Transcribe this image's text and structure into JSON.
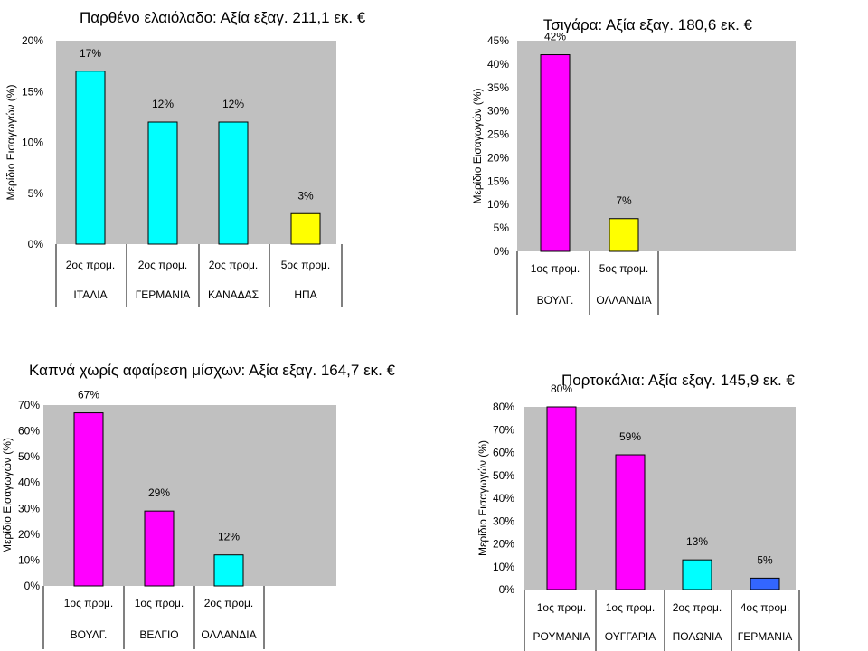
{
  "chart_data": [
    {
      "type": "bar",
      "title": "Παρθένο ελαιόλαδο: Αξία εξαγ. 211,1 εκ. €",
      "ylabel": "Μερίδιο Εισαγωγών (%)",
      "ylim": [
        0,
        20
      ],
      "yticks": [
        "0%",
        "5%",
        "10%",
        "15%",
        "20%"
      ],
      "ytick_values": [
        0,
        5,
        10,
        15,
        20
      ],
      "categories": [
        "ΙΤΑΛΙΑ",
        "ΓΕΡΜΑΝΙΑ",
        "ΚΑΝΑΔΑΣ",
        "ΗΠΑ"
      ],
      "ranks": [
        "2ος προμ.",
        "2ος προμ.",
        "2ος προμ.",
        "5ος προμ."
      ],
      "values": [
        17,
        12,
        12,
        3
      ],
      "value_labels": [
        "17%",
        "12%",
        "12%",
        "3%"
      ],
      "colors": [
        "#00FFFF",
        "#00FFFF",
        "#00FFFF",
        "#FFFF00"
      ],
      "grid": false
    },
    {
      "type": "bar",
      "title": "Τσιγάρα: Αξία εξαγ. 180,6 εκ. €",
      "ylabel": "Μερίδιο Εισαγωγών (%)",
      "ylim": [
        0,
        45
      ],
      "yticks": [
        "0%",
        "5%",
        "10%",
        "15%",
        "20%",
        "25%",
        "30%",
        "35%",
        "40%",
        "45%"
      ],
      "ytick_values": [
        0,
        5,
        10,
        15,
        20,
        25,
        30,
        35,
        40,
        45
      ],
      "categories": [
        "ΒΟΥΛΓ.",
        "ΟΛΛΑΝΔΙΑ"
      ],
      "ranks": [
        "1ος προμ.",
        "5ος προμ."
      ],
      "values": [
        42,
        7
      ],
      "value_labels": [
        "42%",
        "7%"
      ],
      "colors": [
        "#FF00FF",
        "#FFFF00"
      ],
      "grid": false
    },
    {
      "type": "bar",
      "title": "Καπνά χωρίς αφαίρεση μίσχων: Αξία εξαγ. 164,7 εκ. €",
      "ylabel": "Μερίδιο Εισαγωγών (%)",
      "ylim": [
        0,
        70
      ],
      "yticks": [
        "0%",
        "10%",
        "20%",
        "30%",
        "40%",
        "50%",
        "60%",
        "70%"
      ],
      "ytick_values": [
        0,
        10,
        20,
        30,
        40,
        50,
        60,
        70
      ],
      "categories": [
        "ΒΟΥΛΓ.",
        "ΒΕΛΓΙΟ",
        "ΟΛΛΑΝΔΙΑ"
      ],
      "ranks": [
        "1ος προμ.",
        "1ος προμ.",
        "2ος προμ."
      ],
      "values": [
        67,
        29,
        12
      ],
      "value_labels": [
        "67%",
        "29%",
        "12%"
      ],
      "colors": [
        "#FF00FF",
        "#FF00FF",
        "#00FFFF"
      ],
      "grid": false
    },
    {
      "type": "bar",
      "title": "Πορτοκάλια: Αξία εξαγ. 145,9 εκ. €",
      "ylabel": "Μερίδιο Εισαγωγών (%)",
      "ylim": [
        0,
        80
      ],
      "yticks": [
        "0%",
        "10%",
        "20%",
        "30%",
        "40%",
        "50%",
        "60%",
        "70%",
        "80%"
      ],
      "ytick_values": [
        0,
        10,
        20,
        30,
        40,
        50,
        60,
        70,
        80
      ],
      "categories": [
        "ΡΟΥΜΑΝΙΑ",
        "ΟΥΓΓΑΡΙΑ",
        "ΠΟΛΩΝΙΑ",
        "ΓΕΡΜΑΝΙΑ"
      ],
      "ranks": [
        "1ος προμ.",
        "1ος προμ.",
        "2ος προμ.",
        "4ος προμ."
      ],
      "values": [
        80,
        59,
        13,
        5
      ],
      "value_labels": [
        "80%",
        "59%",
        "13%",
        "5%"
      ],
      "colors": [
        "#FF00FF",
        "#FF00FF",
        "#00FFFF",
        "#3366FF"
      ],
      "grid": false
    }
  ],
  "colors": {
    "plot_bg": "#C0C0C0",
    "bar_border": "#000000"
  }
}
